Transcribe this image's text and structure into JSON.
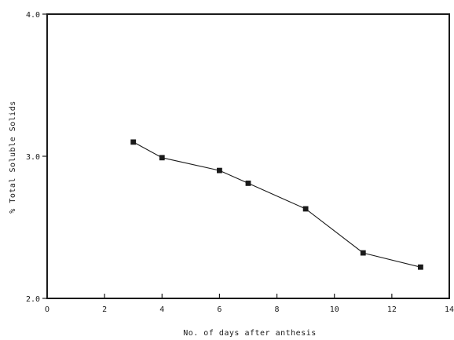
{
  "chart_data": {
    "type": "line",
    "title": "",
    "xlabel": "No. of days after anthesis",
    "ylabel": "% Total Soluble Solids",
    "xlim": [
      0,
      14
    ],
    "ylim": [
      2.0,
      4.0
    ],
    "x_ticks": [
      0,
      2,
      4,
      6,
      8,
      10,
      12,
      14
    ],
    "x_tick_labels": [
      "O",
      "2",
      "4",
      "6",
      "8",
      "10",
      "12",
      "14"
    ],
    "y_ticks": [
      2.0,
      3.0,
      4.0
    ],
    "y_tick_labels": [
      "2.0",
      "3.0",
      "4.0"
    ],
    "grid": false,
    "series": [
      {
        "marker": "square",
        "x": [
          3,
          4,
          6,
          7,
          9,
          11,
          13
        ],
        "y": [
          3.1,
          2.99,
          2.9,
          2.81,
          2.63,
          2.32,
          2.22
        ]
      }
    ]
  }
}
